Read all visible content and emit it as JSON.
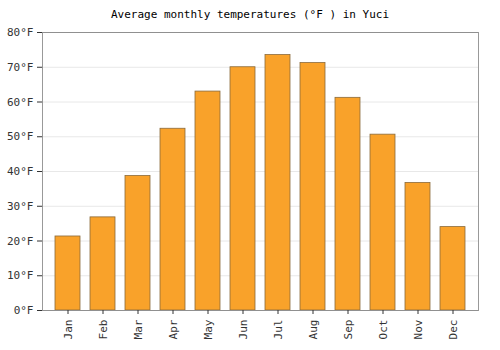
{
  "chart_data": {
    "type": "bar",
    "title": "Average monthly temperatures (°F ) in Yuci",
    "categories": [
      "Jan",
      "Feb",
      "Mar",
      "Apr",
      "May",
      "Jun",
      "Jul",
      "Aug",
      "Sep",
      "Oct",
      "Nov",
      "Dec"
    ],
    "values": [
      21.3,
      26.8,
      38.7,
      52.3,
      63.0,
      70.0,
      73.5,
      71.2,
      61.2,
      50.6,
      36.7,
      24.0
    ],
    "color": "#f9a22a",
    "ylim": [
      0,
      80
    ],
    "yticks": [
      {
        "value": 0,
        "label": "0°F"
      },
      {
        "value": 10,
        "label": "10°F"
      },
      {
        "value": 20,
        "label": "20°F"
      },
      {
        "value": 30,
        "label": "30°F"
      },
      {
        "value": 40,
        "label": "40°F"
      },
      {
        "value": 50,
        "label": "50°F"
      },
      {
        "value": 60,
        "label": "60°F"
      },
      {
        "value": 70,
        "label": "70°F"
      },
      {
        "value": 80,
        "label": "80°F"
      }
    ],
    "grid": true
  }
}
